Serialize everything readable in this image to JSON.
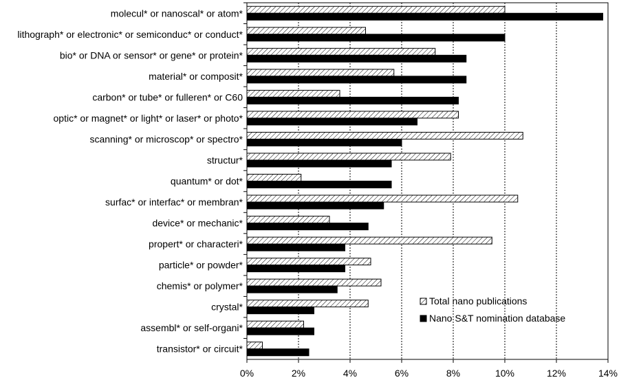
{
  "chart_data": {
    "type": "bar",
    "orientation": "horizontal",
    "categories": [
      "molecul* or nanoscal* or atom*",
      "lithograph* or electronic* or semiconduc* or conduct*",
      "bio* or DNA or sensor* or gene* or protein*",
      "material* or composit*",
      "carbon* or tube* or fulleren* or C60",
      "optic* or magnet* or light* or laser* or photo*",
      "scanning* or microscop* or spectro*",
      "structur*",
      "quantum* or dot*",
      "surfac* or interfac* or membran*",
      "device* or mechanic*",
      "propert* or characteri*",
      "particle* or powder*",
      "chemis* or polymer*",
      "crystal*",
      "assembl* or self-organi*",
      "transistor* or circuit*"
    ],
    "series": [
      {
        "name": "Total nano publications",
        "pattern": "hatched",
        "values": [
          10.0,
          4.6,
          7.3,
          5.7,
          3.6,
          8.2,
          10.7,
          7.9,
          2.1,
          10.5,
          3.2,
          9.5,
          4.8,
          5.2,
          4.7,
          2.2,
          0.6
        ]
      },
      {
        "name": "Nano S&T nomination database",
        "pattern": "solid",
        "color": "#000000",
        "values": [
          13.8,
          10.0,
          8.5,
          8.5,
          8.2,
          6.6,
          6.0,
          5.6,
          5.6,
          5.3,
          4.7,
          3.8,
          3.8,
          3.5,
          2.6,
          2.6,
          2.4
        ]
      }
    ],
    "x_ticks": [
      "0%",
      "2%",
      "4%",
      "6%",
      "8%",
      "10%",
      "12%",
      "14%"
    ],
    "xlim": [
      0,
      14
    ],
    "grid": "vertical dotted",
    "legend_position": "lower-right",
    "title": "",
    "xlabel": "",
    "ylabel": ""
  }
}
